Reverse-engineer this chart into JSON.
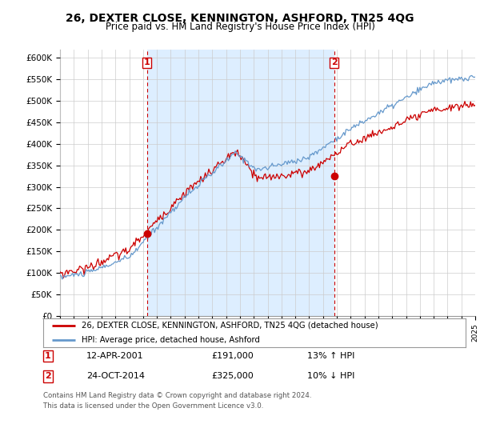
{
  "title": "26, DEXTER CLOSE, KENNINGTON, ASHFORD, TN25 4QG",
  "subtitle": "Price paid vs. HM Land Registry's House Price Index (HPI)",
  "title_fontsize": 10,
  "subtitle_fontsize": 8.5,
  "xlim": [
    1995,
    2025
  ],
  "ylim": [
    0,
    620000
  ],
  "yticks": [
    0,
    50000,
    100000,
    150000,
    200000,
    250000,
    300000,
    350000,
    400000,
    450000,
    500000,
    550000,
    600000
  ],
  "ytick_labels": [
    "£0",
    "£50K",
    "£100K",
    "£150K",
    "£200K",
    "£250K",
    "£300K",
    "£350K",
    "£400K",
    "£450K",
    "£500K",
    "£550K",
    "£600K"
  ],
  "grid_color": "#cccccc",
  "background_color": "#ffffff",
  "plot_bg_color": "#ffffff",
  "shade_color": "#ddeeff",
  "red_line_color": "#cc0000",
  "blue_line_color": "#6699cc",
  "vline_color": "#cc0000",
  "marker1_x": 2001.28,
  "marker1_y": 191000,
  "marker2_x": 2014.81,
  "marker2_y": 325000,
  "legend_line1": "26, DEXTER CLOSE, KENNINGTON, ASHFORD, TN25 4QG (detached house)",
  "legend_line2": "HPI: Average price, detached house, Ashford",
  "table_row1": [
    "1",
    "12-APR-2001",
    "£191,000",
    "13% ↑ HPI"
  ],
  "table_row2": [
    "2",
    "24-OCT-2014",
    "£325,000",
    "10% ↓ HPI"
  ],
  "footer": "Contains HM Land Registry data © Crown copyright and database right 2024.\nThis data is licensed under the Open Government Licence v3.0."
}
